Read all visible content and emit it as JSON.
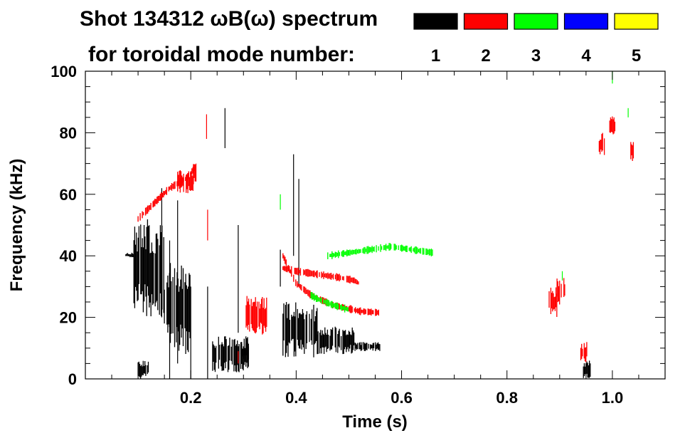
{
  "chart_data": {
    "type": "heatmap",
    "title_line1": "Shot 134312 ωB(ω) spectrum",
    "title_line2": "for toroidal mode number:",
    "xlabel": "Time (s)",
    "ylabel": "Frequency (kHz)",
    "xlim": [
      0.0,
      1.1
    ],
    "ylim": [
      0,
      100
    ],
    "x_ticks": [
      {
        "value": 0.2,
        "label": "0.2"
      },
      {
        "value": 0.4,
        "label": "0.4"
      },
      {
        "value": 0.6,
        "label": "0.6"
      },
      {
        "value": 0.8,
        "label": "0.8"
      },
      {
        "value": 1.0,
        "label": "1.0"
      }
    ],
    "y_ticks": [
      {
        "value": 0,
        "label": "0"
      },
      {
        "value": 20,
        "label": "20"
      },
      {
        "value": 40,
        "label": "40"
      },
      {
        "value": 60,
        "label": "60"
      },
      {
        "value": 80,
        "label": "80"
      },
      {
        "value": 100,
        "label": "100"
      }
    ],
    "legend": {
      "placement": "top-right",
      "entries": [
        {
          "label": "1",
          "color": "#000000"
        },
        {
          "label": "2",
          "color": "#ff0000"
        },
        {
          "label": "3",
          "color": "#00ff00"
        },
        {
          "label": "4",
          "color": "#0000ff"
        },
        {
          "label": "5",
          "color": "#ffff00"
        }
      ]
    },
    "series": [
      {
        "mode": 1,
        "color": "#000000",
        "regions": [
          {
            "t0": 0.075,
            "t1": 0.092,
            "f0": 39.5,
            "f1": 41
          },
          {
            "t0": 0.092,
            "t1": 0.15,
            "f0": 20,
            "f1": 52
          },
          {
            "t0": 0.15,
            "t1": 0.2,
            "f0": 8,
            "f1": 38
          },
          {
            "t0": 0.1,
            "t1": 0.12,
            "f0": 0,
            "f1": 6
          },
          {
            "t0": 0.235,
            "t1": 0.31,
            "f0": 2,
            "f1": 14
          },
          {
            "t0": 0.295,
            "t1": 0.31,
            "f0": 6,
            "f1": 12
          },
          {
            "t0": 0.375,
            "t1": 0.44,
            "f0": 7,
            "f1": 25
          },
          {
            "t0": 0.44,
            "t1": 0.51,
            "f0": 8,
            "f1": 17
          },
          {
            "t0": 0.51,
            "t1": 0.56,
            "f0": 9,
            "f1": 12
          },
          {
            "t0": 0.945,
            "t1": 0.96,
            "f0": 0,
            "f1": 6
          }
        ],
        "streaks": [
          {
            "t": 0.145,
            "f0": 20,
            "f1": 62
          },
          {
            "t": 0.16,
            "f0": 0,
            "f1": 45
          },
          {
            "t": 0.175,
            "f0": 5,
            "f1": 58
          },
          {
            "t": 0.2,
            "f0": 0,
            "f1": 30
          },
          {
            "t": 0.232,
            "f0": 0,
            "f1": 30
          },
          {
            "t": 0.265,
            "f0": 75,
            "f1": 88
          },
          {
            "t": 0.29,
            "f0": 15,
            "f1": 50
          },
          {
            "t": 0.395,
            "f0": 40,
            "f1": 73
          },
          {
            "t": 0.405,
            "f0": 30,
            "f1": 65
          },
          {
            "t": 0.37,
            "f0": 30,
            "f1": 42
          }
        ]
      },
      {
        "mode": 2,
        "color": "#ff0000",
        "regions": [
          {
            "t0": 0.175,
            "t1": 0.205,
            "f0": 60,
            "f1": 68
          },
          {
            "t0": 0.205,
            "t1": 0.21,
            "f0": 63,
            "f1": 70
          },
          {
            "t0": 0.305,
            "t1": 0.345,
            "f0": 14,
            "f1": 27
          },
          {
            "t0": 0.88,
            "t1": 0.895,
            "f0": 20,
            "f1": 30
          },
          {
            "t0": 0.895,
            "t1": 0.91,
            "f0": 24,
            "f1": 33
          },
          {
            "t0": 0.94,
            "t1": 0.953,
            "f0": 5,
            "f1": 12
          },
          {
            "t0": 0.975,
            "t1": 0.985,
            "f0": 72,
            "f1": 80
          },
          {
            "t0": 0.995,
            "t1": 1.005,
            "f0": 78,
            "f1": 86
          },
          {
            "t0": 1.035,
            "t1": 1.04,
            "f0": 70,
            "f1": 78
          }
        ],
        "curves": [
          {
            "points": [
              [
                0.375,
                40
              ],
              [
                0.4,
                31
              ],
              [
                0.43,
                27
              ],
              [
                0.47,
                24
              ],
              [
                0.52,
                22
              ],
              [
                0.56,
                21.5
              ]
            ]
          },
          {
            "points": [
              [
                0.375,
                36
              ],
              [
                0.4,
                35
              ],
              [
                0.44,
                34
              ],
              [
                0.48,
                33
              ],
              [
                0.51,
                32
              ],
              [
                0.52,
                31
              ]
            ]
          },
          {
            "points": [
              [
                0.1,
                52
              ],
              [
                0.13,
                57
              ],
              [
                0.16,
                62
              ],
              [
                0.19,
                65
              ],
              [
                0.21,
                69
              ]
            ]
          }
        ],
        "streaks": [
          {
            "t": 0.23,
            "f0": 78,
            "f1": 86
          },
          {
            "t": 0.232,
            "f0": 45,
            "f1": 55
          },
          {
            "t": 0.29,
            "f0": 5,
            "f1": 9
          }
        ]
      },
      {
        "mode": 3,
        "color": "#00ff00",
        "curves": [
          {
            "points": [
              [
                0.46,
                40
              ],
              [
                0.5,
                41
              ],
              [
                0.54,
                42
              ],
              [
                0.58,
                43
              ],
              [
                0.62,
                42
              ],
              [
                0.66,
                41
              ]
            ]
          },
          {
            "points": [
              [
                0.42,
                28
              ],
              [
                0.44,
                26
              ],
              [
                0.47,
                24
              ],
              [
                0.5,
                22.5
              ]
            ]
          }
        ],
        "streaks": [
          {
            "t": 0.37,
            "f0": 55,
            "f1": 60
          },
          {
            "t": 1.0,
            "f0": 96,
            "f1": 100
          },
          {
            "t": 1.03,
            "f0": 85,
            "f1": 88
          },
          {
            "t": 0.905,
            "f0": 32,
            "f1": 35
          }
        ]
      }
    ]
  }
}
